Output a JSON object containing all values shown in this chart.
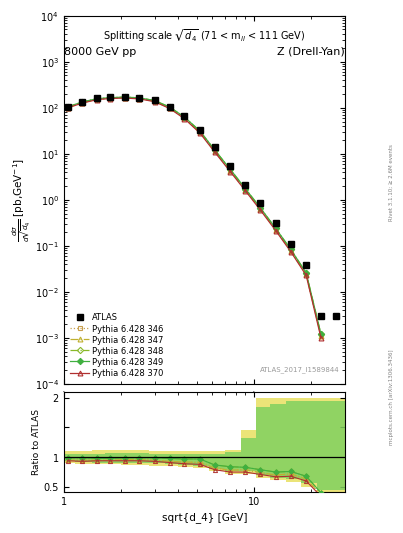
{
  "title_left": "8000 GeV pp",
  "title_right": "Z (Drell-Yan)",
  "plot_title": "Splitting scale $\\sqrt{d_4}$ (71 < m$_{ll}$ < 111 GeV)",
  "xlabel": "sqrt{d_4} [GeV]",
  "ylabel_main": "d$\\sigma$/dsqrt($d_4$) [pb,GeV$^{-1}$]",
  "ylabel_ratio": "Ratio to ATLAS",
  "watermark": "ATLAS_2017_I1589844",
  "right_label": "mcplots.cern.ch [arXiv:1306.3436]",
  "rivet_label": "Rivet 3.1.10; ≥ 2.6M events",
  "xlim": [
    1.0,
    30.0
  ],
  "ylim_main": [
    0.0001,
    10000.0
  ],
  "ylim_ratio": [
    0.42,
    2.1
  ],
  "atlas_x": [
    1.05,
    1.25,
    1.5,
    1.75,
    2.1,
    2.5,
    3.0,
    3.6,
    4.3,
    5.2,
    6.2,
    7.5,
    9.0,
    10.8,
    13.0,
    15.6,
    18.8,
    22.5,
    27.0
  ],
  "atlas_y": [
    105,
    135,
    160,
    168,
    172,
    165,
    145,
    105,
    65,
    32,
    14,
    5.5,
    2.1,
    0.85,
    0.32,
    0.11,
    0.038,
    0.003,
    0.003
  ],
  "py346_x": [
    1.05,
    1.25,
    1.5,
    1.75,
    2.1,
    2.5,
    3.0,
    3.6,
    4.3,
    5.2,
    6.2,
    7.5,
    9.0,
    10.8,
    13.0,
    15.6,
    18.8,
    22.5
  ],
  "py346_y": [
    100,
    128,
    152,
    160,
    165,
    158,
    138,
    98,
    60,
    29,
    11.5,
    4.3,
    1.65,
    0.63,
    0.225,
    0.079,
    0.024,
    0.0011
  ],
  "py347_x": [
    1.05,
    1.25,
    1.5,
    1.75,
    2.1,
    2.5,
    3.0,
    3.6,
    4.3,
    5.2,
    6.2,
    7.5,
    9.0,
    10.8,
    13.0,
    15.6,
    18.8,
    22.5
  ],
  "py347_y": [
    100,
    128,
    152,
    160,
    165,
    158,
    138,
    98,
    60,
    29,
    11.5,
    4.3,
    1.65,
    0.63,
    0.225,
    0.079,
    0.024,
    0.0011
  ],
  "py348_x": [
    1.05,
    1.25,
    1.5,
    1.75,
    2.1,
    2.5,
    3.0,
    3.6,
    4.3,
    5.2,
    6.2,
    7.5,
    9.0,
    10.8,
    13.0,
    15.6,
    18.8,
    22.5
  ],
  "py348_y": [
    104,
    133,
    157,
    165,
    170,
    163,
    143,
    103,
    63,
    31,
    12.2,
    4.6,
    1.75,
    0.67,
    0.24,
    0.084,
    0.026,
    0.0012
  ],
  "py349_x": [
    1.05,
    1.25,
    1.5,
    1.75,
    2.1,
    2.5,
    3.0,
    3.6,
    4.3,
    5.2,
    6.2,
    7.5,
    9.0,
    10.8,
    13.0,
    15.6,
    18.8,
    22.5
  ],
  "py349_y": [
    104,
    133,
    157,
    165,
    170,
    163,
    143,
    103,
    63,
    31,
    12.2,
    4.6,
    1.75,
    0.67,
    0.24,
    0.084,
    0.026,
    0.0012
  ],
  "py370_x": [
    1.05,
    1.25,
    1.5,
    1.75,
    2.1,
    2.5,
    3.0,
    3.6,
    4.3,
    5.2,
    6.2,
    7.5,
    9.0,
    10.8,
    13.0,
    15.6,
    18.8,
    22.5
  ],
  "py370_y": [
    99,
    126,
    150,
    158,
    162,
    155,
    135,
    96,
    58,
    28,
    11.0,
    4.1,
    1.58,
    0.6,
    0.215,
    0.075,
    0.023,
    0.001
  ],
  "ratio346_x": [
    1.05,
    1.25,
    1.5,
    1.75,
    2.1,
    2.5,
    3.0,
    3.6,
    4.3,
    5.2,
    6.2,
    7.5,
    9.0,
    10.8,
    13.0,
    15.6,
    18.8,
    22.5
  ],
  "ratio346_y": [
    0.95,
    0.95,
    0.95,
    0.95,
    0.96,
    0.96,
    0.95,
    0.93,
    0.92,
    0.91,
    0.82,
    0.78,
    0.79,
    0.74,
    0.7,
    0.72,
    0.63,
    0.37
  ],
  "ratio347_x": [
    1.05,
    1.25,
    1.5,
    1.75,
    2.1,
    2.5,
    3.0,
    3.6,
    4.3,
    5.2,
    6.2,
    7.5,
    9.0,
    10.8,
    13.0,
    15.6,
    18.8,
    22.5
  ],
  "ratio347_y": [
    0.95,
    0.95,
    0.95,
    0.95,
    0.96,
    0.96,
    0.95,
    0.93,
    0.92,
    0.91,
    0.82,
    0.78,
    0.79,
    0.74,
    0.7,
    0.72,
    0.63,
    0.37
  ],
  "ratio348_x": [
    1.05,
    1.25,
    1.5,
    1.75,
    2.1,
    2.5,
    3.0,
    3.6,
    4.3,
    5.2,
    6.2,
    7.5,
    9.0,
    10.8,
    13.0,
    15.6,
    18.8,
    22.5
  ],
  "ratio348_y": [
    0.99,
    0.99,
    0.98,
    0.98,
    0.99,
    0.99,
    0.99,
    0.98,
    0.97,
    0.97,
    0.87,
    0.84,
    0.83,
    0.79,
    0.75,
    0.76,
    0.68,
    0.4
  ],
  "ratio349_x": [
    1.05,
    1.25,
    1.5,
    1.75,
    2.1,
    2.5,
    3.0,
    3.6,
    4.3,
    5.2,
    6.2,
    7.5,
    9.0,
    10.8,
    13.0,
    15.6,
    18.8,
    22.5
  ],
  "ratio349_y": [
    0.99,
    0.99,
    0.98,
    0.98,
    0.99,
    0.99,
    0.99,
    0.98,
    0.97,
    0.97,
    0.87,
    0.84,
    0.83,
    0.79,
    0.75,
    0.76,
    0.68,
    0.4
  ],
  "ratio370_x": [
    1.05,
    1.25,
    1.5,
    1.75,
    2.1,
    2.5,
    3.0,
    3.6,
    4.3,
    5.2,
    6.2,
    7.5,
    9.0,
    10.8,
    13.0,
    15.6,
    18.8,
    22.5
  ],
  "ratio370_y": [
    0.94,
    0.93,
    0.94,
    0.94,
    0.94,
    0.94,
    0.93,
    0.91,
    0.89,
    0.88,
    0.79,
    0.75,
    0.75,
    0.71,
    0.67,
    0.68,
    0.6,
    0.34
  ],
  "band_yellow_edges": [
    1.0,
    1.15,
    1.4,
    1.65,
    2.0,
    2.35,
    2.8,
    3.4,
    4.0,
    4.8,
    5.8,
    7.0,
    8.5,
    10.2,
    12.2,
    14.8,
    17.7,
    21.4,
    30.0
  ],
  "band_yellow_lo": [
    0.9,
    0.89,
    0.88,
    0.88,
    0.87,
    0.87,
    0.86,
    0.85,
    0.83,
    0.81,
    0.77,
    0.72,
    0.72,
    0.65,
    0.61,
    0.58,
    0.5,
    0.42
  ],
  "band_yellow_hi": [
    1.1,
    1.11,
    1.12,
    1.12,
    1.12,
    1.12,
    1.11,
    1.1,
    1.1,
    1.1,
    1.1,
    1.12,
    1.45,
    2.0,
    2.0,
    2.0,
    2.0,
    2.0
  ],
  "band_green_edges": [
    1.0,
    1.15,
    1.4,
    1.65,
    2.0,
    2.35,
    2.8,
    3.4,
    4.0,
    4.8,
    5.8,
    7.0,
    8.5,
    10.2,
    12.2,
    14.8,
    17.7,
    21.4,
    30.0
  ],
  "band_green_lo": [
    0.93,
    0.92,
    0.91,
    0.91,
    0.91,
    0.91,
    0.9,
    0.89,
    0.87,
    0.86,
    0.8,
    0.76,
    0.76,
    0.7,
    0.65,
    0.63,
    0.56,
    0.44
  ],
  "band_green_hi": [
    1.06,
    1.06,
    1.06,
    1.07,
    1.07,
    1.07,
    1.06,
    1.05,
    1.05,
    1.05,
    1.05,
    1.08,
    1.32,
    1.85,
    1.9,
    1.95,
    1.95,
    1.95
  ],
  "color346": "#c8a050",
  "color347": "#c0b030",
  "color348": "#88b828",
  "color349": "#40b040",
  "color370": "#b03030",
  "color_atlas": "#000000",
  "background": "#ffffff"
}
